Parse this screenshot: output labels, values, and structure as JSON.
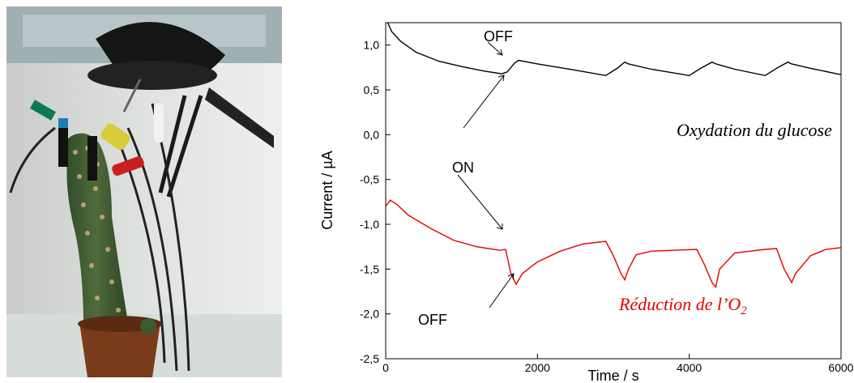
{
  "chart_data": {
    "type": "line",
    "xlabel": "Time / s",
    "ylabel": "Current / µA",
    "xlim": [
      0,
      6000
    ],
    "ylim": [
      -2.5,
      1.25
    ],
    "x_ticks": [
      0,
      2000,
      4000,
      6000
    ],
    "x_tick_labels": [
      "0",
      "2000",
      "4000",
      "6000"
    ],
    "y_ticks": [
      -2.5,
      -2.0,
      -1.5,
      -1.0,
      -0.5,
      0.0,
      0.5,
      1.0
    ],
    "y_tick_labels": [
      "-2,5",
      "-2,0",
      "-1,5",
      "-1,0",
      "-0,5",
      "0,0",
      "0,5",
      "1,0"
    ],
    "grid": false,
    "series": [
      {
        "color": "#000000",
        "x": [
          0,
          80,
          200,
          400,
          700,
          1000,
          1300,
          1530,
          1600,
          1700,
          1750,
          2000,
          2500,
          2900,
          3050,
          3150,
          3200,
          3500,
          4000,
          4150,
          4300,
          4350,
          4600,
          5000,
          5150,
          5300,
          5350,
          5600,
          6000
        ],
        "y": [
          1.3,
          1.15,
          1.04,
          0.92,
          0.82,
          0.76,
          0.71,
          0.68,
          0.7,
          0.8,
          0.83,
          0.79,
          0.72,
          0.66,
          0.74,
          0.81,
          0.79,
          0.73,
          0.66,
          0.74,
          0.81,
          0.79,
          0.73,
          0.66,
          0.74,
          0.81,
          0.79,
          0.74,
          0.67
        ]
      },
      {
        "color": "#e00000",
        "x": [
          0,
          60,
          150,
          300,
          600,
          900,
          1200,
          1500,
          1580,
          1650,
          1720,
          1800,
          2000,
          2300,
          2600,
          2900,
          3000,
          3100,
          3150,
          3200,
          3300,
          3500,
          3800,
          4100,
          4200,
          4300,
          4350,
          4400,
          4600,
          4800,
          5000,
          5150,
          5250,
          5350,
          5400,
          5600,
          5800,
          6000
        ],
        "y": [
          -0.8,
          -0.73,
          -0.78,
          -0.9,
          -1.05,
          -1.18,
          -1.25,
          -1.29,
          -1.28,
          -1.55,
          -1.67,
          -1.55,
          -1.42,
          -1.3,
          -1.22,
          -1.19,
          -1.35,
          -1.55,
          -1.62,
          -1.5,
          -1.34,
          -1.3,
          -1.29,
          -1.28,
          -1.45,
          -1.65,
          -1.7,
          -1.5,
          -1.32,
          -1.3,
          -1.28,
          -1.27,
          -1.5,
          -1.65,
          -1.55,
          -1.35,
          -1.28,
          -1.26
        ]
      }
    ],
    "annotations": {
      "off_top": "OFF",
      "on": "ON",
      "off_bottom": "OFF",
      "oxidation": "Oxydation du glucose",
      "reduction": "Réduction de l’O",
      "reduction_sub": "2"
    }
  },
  "photo": {
    "icon": "cactus-electrodes-photo"
  }
}
